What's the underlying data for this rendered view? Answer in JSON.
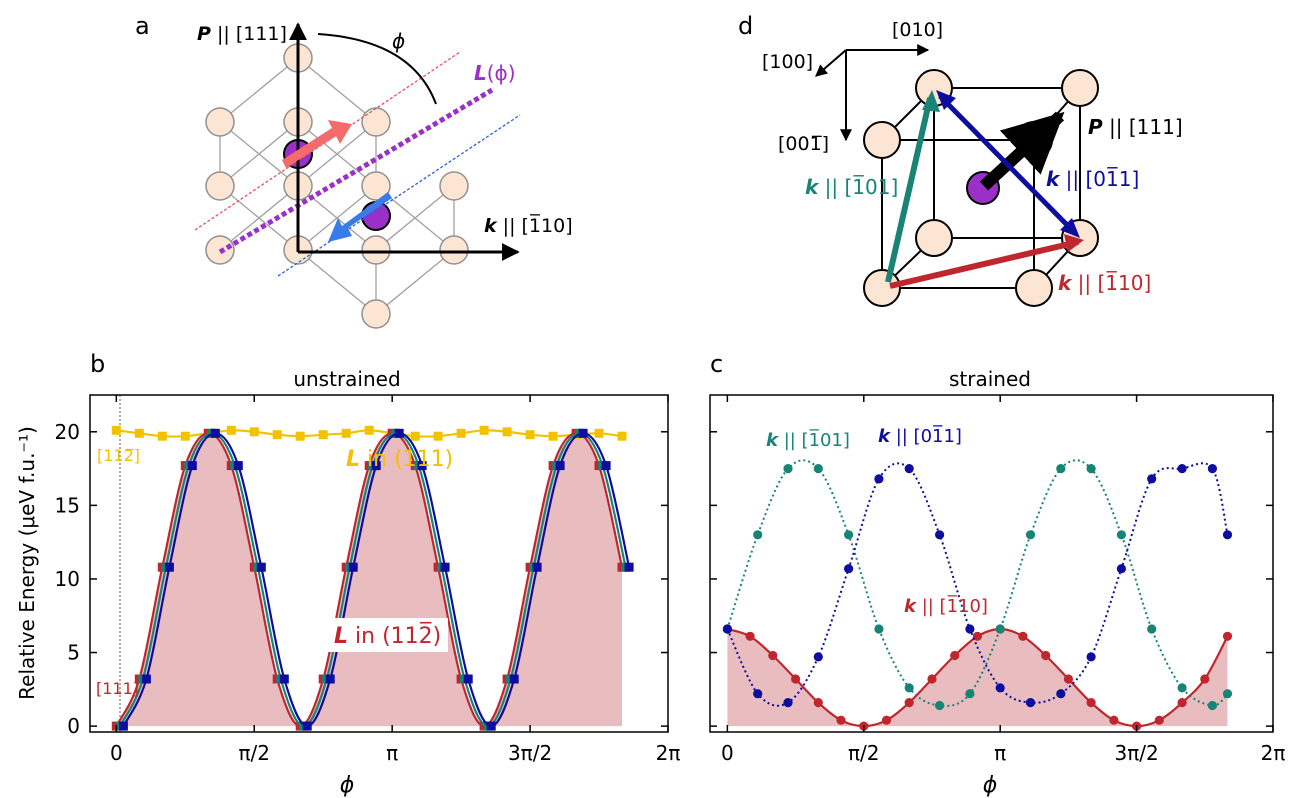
{
  "panel_labels": {
    "a": "a",
    "b": "b",
    "c": "c",
    "d": "d"
  },
  "panel_a": {
    "p_axis": {
      "bold": "P",
      "rest": " || [111]"
    },
    "k_axis": {
      "bold": "k",
      "rest": " || [1̅10]"
    },
    "phi": "ϕ",
    "l_label": {
      "bold": "L",
      "rest": "(ϕ)"
    }
  },
  "panel_d": {
    "axis_010": "[010]",
    "axis_100": "[100]",
    "axis_00m1": "[001̅]",
    "p_label": {
      "bold": "P",
      "rest": " || [111]"
    },
    "k_101": {
      "bold": "k",
      "rest": " || [1̅01]"
    },
    "k_011": {
      "bold": "k",
      "rest": " || [01̅1]"
    },
    "k_110": {
      "bold": "k",
      "rest": " || [1̅10]"
    }
  },
  "colors": {
    "gold": "#f2c200",
    "red": "#c0262d",
    "teal": "#188476",
    "navy": "#0d0d9e",
    "fill": "#e8b8bc",
    "purple": "#9b30c8",
    "atom": "#fde5d4"
  },
  "chart_data": [
    {
      "type": "line",
      "title": "unstrained",
      "xlabel": "ϕ",
      "ylabel": "Relative Energy (μeV f.u.⁻¹)",
      "xlim": [
        -0.3,
        6.2832
      ],
      "ylim": [
        -0.4,
        22.5
      ],
      "xticks": [
        "0",
        "π/2",
        "π",
        "3π/2",
        "2π"
      ],
      "yticks": [
        "0",
        "5",
        "10",
        "15",
        "20"
      ],
      "grid": false,
      "annotations": {
        "gold_line": {
          "bold": "L",
          "rest": " in (111)"
        },
        "red_curve": {
          "bold": "L",
          "rest": " in (112̅)"
        },
        "left_top": "[112̅]",
        "left_bottom": "[111]"
      },
      "x": [
        0.0,
        0.2618,
        0.5236,
        0.7854,
        1.0472,
        1.309,
        1.5708,
        1.8326,
        2.0944,
        2.3562,
        2.618,
        2.8798,
        3.1416,
        3.4034,
        3.6652,
        3.927,
        4.1888,
        4.4506,
        4.7124,
        4.9742,
        5.236,
        5.4978,
        5.7596
      ],
      "series": [
        {
          "name": "L in (111)",
          "color": "#f2c200",
          "x": [
            0.0,
            0.2618,
            0.5236,
            0.7854,
            1.0472,
            1.309,
            1.5708,
            1.8326,
            2.0944,
            2.3562,
            2.618,
            2.8798,
            3.1416,
            3.4034,
            3.6652,
            3.927,
            4.1888,
            4.4506,
            4.7124,
            4.9742,
            5.236,
            5.4978,
            5.7596
          ],
          "values": [
            20.1,
            19.9,
            19.7,
            19.7,
            19.9,
            20.1,
            20.0,
            19.8,
            19.7,
            19.8,
            19.9,
            20.1,
            19.9,
            19.7,
            19.7,
            19.9,
            20.1,
            20.0,
            19.8,
            19.7,
            19.8,
            19.9,
            19.7
          ]
        },
        {
          "name": "",
          "color": "#c0262d",
          "x": [
            0.0,
            0.2618,
            0.5236,
            0.7854,
            1.0472,
            1.309,
            1.5708,
            1.8326,
            2.0944,
            2.3562,
            2.618,
            2.8798,
            3.1416,
            3.4034,
            3.6652,
            3.927,
            4.1888,
            4.4506,
            4.7124,
            4.9742,
            5.236,
            5.4978,
            5.7596
          ],
          "values": [
            0.0,
            3.2,
            10.8,
            17.7,
            19.9,
            17.7,
            10.8,
            3.2,
            0.0,
            3.2,
            10.8,
            17.7,
            19.9,
            17.7,
            10.8,
            3.2,
            0.0,
            3.2,
            10.8,
            17.7,
            19.9,
            17.7,
            10.8
          ]
        },
        {
          "name": "",
          "color": "#188476",
          "x": [
            0.04,
            0.302,
            0.564,
            0.825,
            1.087,
            1.349,
            1.611,
            1.873,
            2.134,
            2.396,
            2.658,
            2.92,
            3.182,
            3.443,
            3.705,
            3.967,
            4.229,
            4.491,
            4.752,
            5.014,
            5.276,
            5.538,
            5.8
          ],
          "values": [
            0.0,
            3.2,
            10.8,
            17.7,
            19.9,
            17.7,
            10.8,
            3.2,
            0.0,
            3.2,
            10.8,
            17.7,
            19.9,
            17.7,
            10.8,
            3.2,
            0.0,
            3.2,
            10.8,
            17.7,
            19.9,
            17.7,
            10.8
          ]
        },
        {
          "name": "",
          "color": "#0d0d9e",
          "x": [
            0.08,
            0.342,
            0.604,
            0.865,
            1.127,
            1.389,
            1.651,
            1.913,
            2.174,
            2.436,
            2.698,
            2.96,
            3.222,
            3.483,
            3.745,
            4.007,
            4.269,
            4.531,
            4.792,
            5.054,
            5.316,
            5.578,
            5.84
          ],
          "values": [
            0.0,
            3.2,
            10.8,
            17.7,
            19.9,
            17.7,
            10.8,
            3.2,
            0.0,
            3.2,
            10.8,
            17.7,
            19.9,
            17.7,
            10.8,
            3.2,
            0.0,
            3.2,
            10.8,
            17.7,
            19.9,
            17.7,
            10.8
          ]
        }
      ]
    },
    {
      "type": "line",
      "title": "strained",
      "xlabel": "ϕ",
      "ylabel": "",
      "xlim": [
        -0.2,
        6.2832
      ],
      "ylim": [
        -0.4,
        22.5
      ],
      "xticks": [
        "0",
        "π/2",
        "π",
        "3π/2",
        "2π"
      ],
      "grid": false,
      "annotations": {
        "teal": {
          "bold": "k",
          "rest": " || [1̅01]"
        },
        "navy": {
          "bold": "k",
          "rest": " || [01̅1]"
        },
        "red": {
          "bold": "k",
          "rest": " || [1̅10]"
        }
      },
      "series": [
        {
          "name": "k || [1̅10]",
          "color": "#c0262d",
          "style": "solid",
          "x": [
            0.0,
            0.2618,
            0.5236,
            0.7854,
            1.0472,
            1.309,
            1.5708,
            1.8326,
            2.0944,
            2.3562,
            2.618,
            2.8798,
            3.1416,
            3.4034,
            3.6652,
            3.927,
            4.1888,
            4.4506,
            4.7124,
            4.9742,
            5.236,
            5.4978,
            5.7596
          ],
          "values": [
            6.6,
            6.1,
            4.8,
            3.2,
            1.6,
            0.4,
            0.0,
            0.4,
            1.6,
            3.2,
            4.8,
            6.1,
            6.6,
            6.1,
            4.8,
            3.2,
            1.6,
            0.4,
            0.0,
            0.4,
            1.6,
            3.2,
            6.1
          ]
        },
        {
          "name": "k || [1̅01]",
          "color": "#188476",
          "style": "dotted",
          "x": [
            0.0,
            0.3491,
            0.6981,
            1.0472,
            1.3963,
            1.7453,
            2.0944,
            2.4435,
            2.7925,
            3.1416,
            3.4907,
            3.8397,
            4.1888,
            4.5379,
            4.8869,
            5.236,
            5.5851,
            5.7596
          ],
          "values": [
            6.6,
            13.0,
            17.5,
            17.5,
            13.0,
            6.6,
            2.6,
            1.4,
            2.2,
            6.6,
            13.0,
            17.5,
            17.5,
            13.0,
            6.6,
            2.6,
            1.4,
            2.2
          ]
        },
        {
          "name": "k || [01̅1]",
          "color": "#0d0d9e",
          "style": "dotted",
          "x": [
            0.0,
            0.3491,
            0.6981,
            1.0472,
            1.3963,
            1.7453,
            2.0944,
            2.4435,
            2.7925,
            3.1416,
            3.4907,
            3.8397,
            4.1888,
            4.5379,
            4.8869,
            5.236,
            5.5851,
            5.7596
          ],
          "values": [
            6.6,
            2.2,
            1.6,
            4.7,
            10.7,
            16.8,
            17.5,
            13.0,
            6.6,
            2.6,
            1.6,
            2.2,
            4.7,
            10.7,
            16.8,
            17.5,
            17.5,
            13.0
          ]
        }
      ]
    }
  ]
}
